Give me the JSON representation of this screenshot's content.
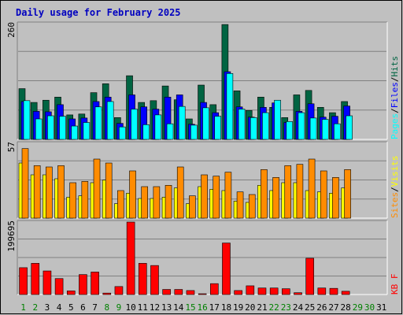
{
  "chart_data": {
    "type": "bar",
    "title": "Daily usage for February 2025",
    "days": [
      "1",
      "2",
      "3",
      "4",
      "5",
      "6",
      "7",
      "8",
      "9",
      "10",
      "11",
      "12",
      "13",
      "14",
      "15",
      "16",
      "17",
      "18",
      "19",
      "20",
      "21",
      "22",
      "23",
      "24",
      "25",
      "26",
      "27",
      "28",
      "29",
      "30",
      "31"
    ],
    "weekend_days": [
      1,
      2,
      8,
      9,
      15,
      16,
      22,
      23,
      29,
      30
    ],
    "future_days": [
      29,
      30,
      31
    ],
    "colors": {
      "hits": "#006442",
      "files": "#0000ff",
      "pages": "#00ffff",
      "visits": "#ffff00",
      "sites": "#ff8c00",
      "kbytes": "#ff0000",
      "title": "#0000c0",
      "weekday": "#000000",
      "weekend": "#008000",
      "plot_bg": "#c0c0c0",
      "frame": "#a0a0a0"
    },
    "panels": [
      {
        "id": "hits_files_pages",
        "ymax_label": "260",
        "ymax": 260,
        "legend": [
          {
            "text": "Pages",
            "color": "#00ffff"
          },
          {
            "text": "/",
            "color": "#000000"
          },
          {
            "text": "Files",
            "color": "#0000ff"
          },
          {
            "text": "/",
            "color": "#000000"
          },
          {
            "text": "Hits",
            "color": "#006442"
          }
        ],
        "series": [
          {
            "name": "Hits",
            "color": "#006442",
            "values": [
              114,
              83,
              88,
              95,
              55,
              57,
              105,
              125,
              49,
              143,
              83,
              87,
              120,
              89,
              46,
              122,
              78,
              258,
              109,
              65,
              95,
              72,
              49,
              100,
              110,
              72,
              60,
              85,
              0,
              0,
              0
            ]
          },
          {
            "name": "Files",
            "color": "#0000ff",
            "values": [
              85,
              63,
              62,
              78,
              46,
              48,
              85,
              95,
              36,
              100,
              73,
              68,
              95,
              100,
              34,
              83,
              60,
              152,
              73,
              50,
              72,
              82,
              38,
              63,
              80,
              50,
              52,
              75,
              0,
              0,
              0
            ]
          },
          {
            "name": "Pages",
            "color": "#00ffff",
            "values": [
              87,
              46,
              53,
              52,
              30,
              38,
              73,
              85,
              28,
              68,
              33,
              55,
              35,
              74,
              32,
              71,
              52,
              148,
              68,
              49,
              60,
              88,
              40,
              60,
              48,
              45,
              35,
              53,
              0,
              0,
              0
            ]
          }
        ]
      },
      {
        "id": "visits_sites",
        "ymax_label": "57",
        "ymax": 57,
        "legend": [
          {
            "text": "Sites",
            "color": "#ff8c00"
          },
          {
            "text": "/",
            "color": "#000000"
          },
          {
            "text": "Visits",
            "color": "#ffff00"
          }
        ],
        "series": [
          {
            "name": "Visits",
            "color": "#ffff00",
            "values": [
              42,
              33,
              33,
              30,
              16,
              17,
              27,
              29,
              11,
              19,
              15,
              15,
              16,
              23,
              11,
              24,
              22,
              21,
              13,
              12,
              25,
              21,
              27,
              27,
              21,
              20,
              19,
              23,
              0,
              0,
              0
            ]
          },
          {
            "name": "Sites",
            "color": "#ff8c00",
            "values": [
              53,
              40,
              39,
              40,
              27,
              28,
              45,
              42,
              21,
              36,
              24,
              24,
              25,
              39,
              17,
              33,
              32,
              35,
              20,
              18,
              37,
              31,
              40,
              41,
              45,
              36,
              31,
              37,
              0,
              0,
              0
            ]
          }
        ]
      },
      {
        "id": "kbytes",
        "ymax_label": "199695",
        "ymax": 199695,
        "legend": [
          {
            "text": "KB F",
            "color": "#ff0000"
          }
        ],
        "series": [
          {
            "name": "KB F",
            "color": "#ff0000",
            "values": [
              74000,
              86000,
              65000,
              44000,
              10000,
              55000,
              62000,
              4000,
              22000,
              199695,
              86000,
              80000,
              14000,
              14000,
              11000,
              2000,
              30000,
              142000,
              11000,
              24000,
              18000,
              18000,
              16000,
              5000,
              100000,
              18000,
              17000,
              9000,
              0,
              0,
              0
            ]
          }
        ]
      }
    ]
  }
}
